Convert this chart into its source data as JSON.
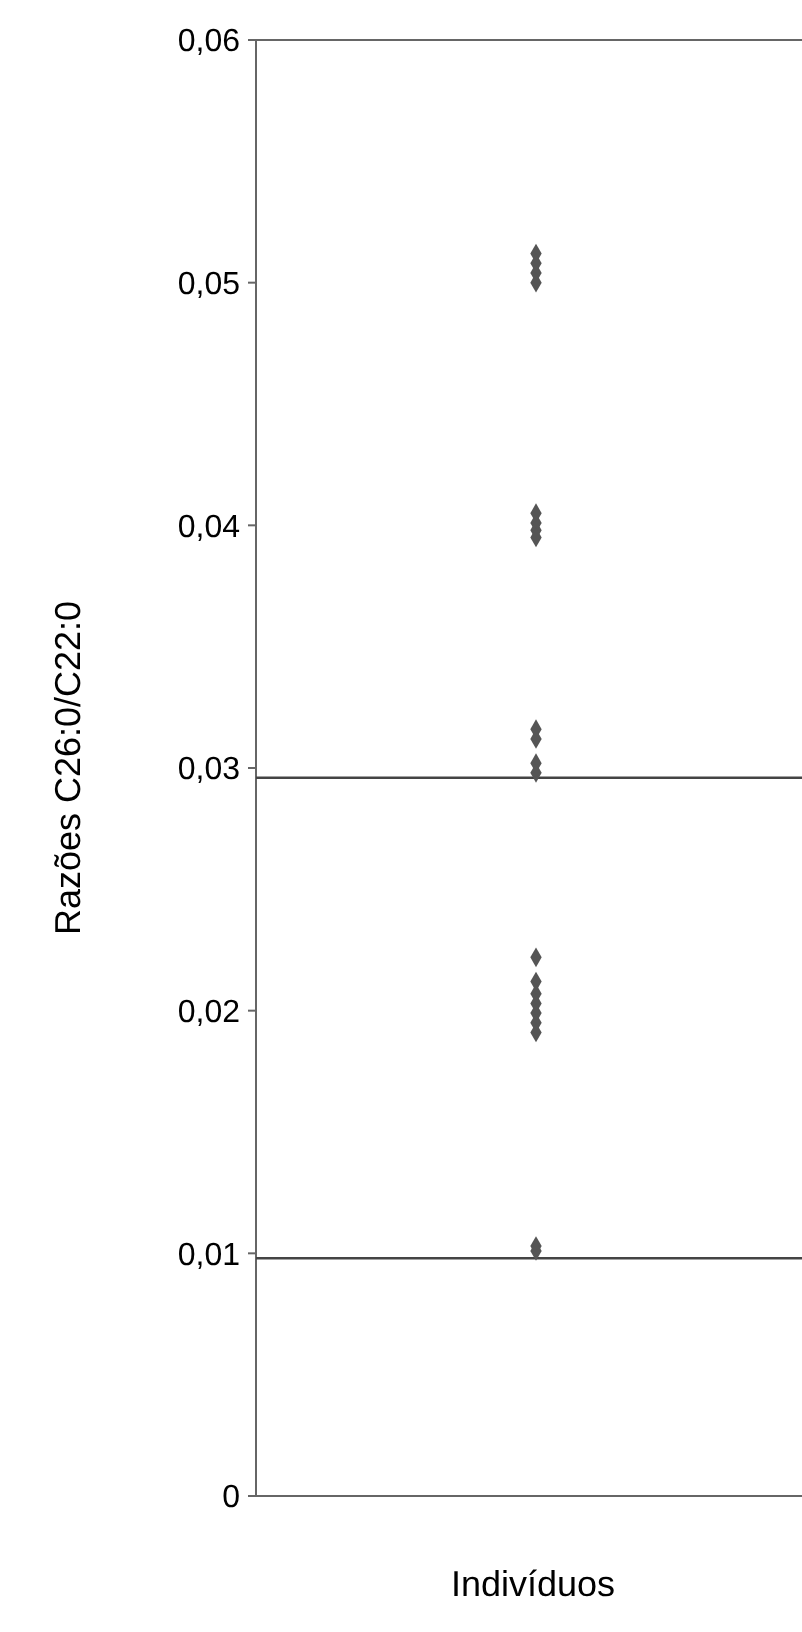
{
  "chart_data": {
    "type": "scatter",
    "xlabel": "Indivíduos",
    "ylabel": "Razões C26:0/C22:0",
    "categories": [
      null
    ],
    "series": [
      {
        "color": "#555555",
        "values": [
          0.0512
        ]
      },
      {
        "color": "#555555",
        "values": [
          0.0508
        ]
      },
      {
        "color": "#555555",
        "values": [
          0.0504
        ]
      },
      {
        "color": "#555555",
        "values": [
          0.05
        ]
      },
      {
        "color": "#555555",
        "values": [
          0.0405
        ]
      },
      {
        "color": "#555555",
        "values": [
          0.0401
        ]
      },
      {
        "color": "#555555",
        "values": [
          0.0398
        ]
      },
      {
        "color": "#555555",
        "values": [
          0.0395
        ]
      },
      {
        "color": "#555555",
        "values": [
          0.0316
        ]
      },
      {
        "color": "#555555",
        "values": [
          0.0312
        ]
      },
      {
        "color": "#555555",
        "values": [
          0.0302
        ]
      },
      {
        "color": "#555555",
        "values": [
          0.0298
        ]
      },
      {
        "color": "#555555",
        "values": [
          0.0222
        ]
      },
      {
        "color": "#555555",
        "values": [
          0.0212
        ]
      },
      {
        "color": "#555555",
        "values": [
          0.0207
        ]
      },
      {
        "color": "#555555",
        "values": [
          0.0203
        ]
      },
      {
        "color": "#555555",
        "values": [
          0.0199
        ]
      },
      {
        "color": "#555555",
        "values": [
          0.0195
        ]
      },
      {
        "color": "#555555",
        "values": [
          0.0191
        ]
      },
      {
        "color": "#555555",
        "values": [
          0.0103
        ]
      },
      {
        "color": "#555555",
        "values": [
          0.0101
        ]
      }
    ],
    "marker": "diamond",
    "ylim": [
      0,
      0.06
    ],
    "yticks": [
      {
        "value": 0,
        "label": "0"
      },
      {
        "value": 0.01,
        "label": "0,01"
      },
      {
        "value": 0.02,
        "label": "0,02"
      },
      {
        "value": 0.03,
        "label": "0,03"
      },
      {
        "value": 0.04,
        "label": "0,04"
      },
      {
        "value": 0.05,
        "label": "0,05"
      },
      {
        "value": 0.06,
        "label": "0,06"
      }
    ],
    "ref_lines": [
      {
        "axis": "y",
        "value": 0.0098,
        "color": "#444444"
      },
      {
        "axis": "y",
        "value": 0.0296,
        "color": "#444444"
      }
    ]
  }
}
